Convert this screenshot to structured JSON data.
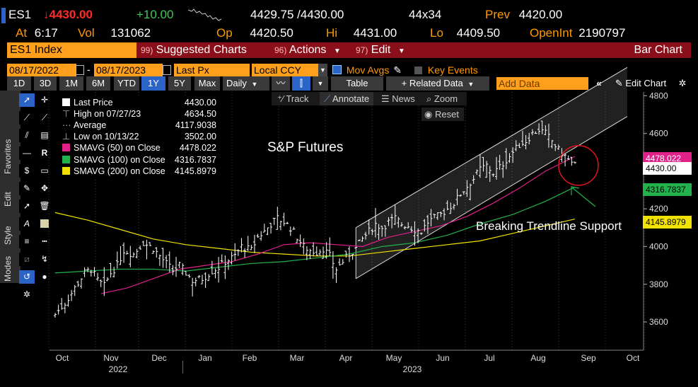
{
  "quote": {
    "ticker": "ES1",
    "arrow": "↓",
    "last": "4430.00",
    "change": "+10.00",
    "bid_ask": "4429.75 /4430.00",
    "size": "44x34",
    "prev_label": "Prev",
    "prev": "4420.00",
    "at_label": "At",
    "time": "6:17",
    "vol_label": "Vol",
    "vol": "131062",
    "op_label": "Op",
    "open": "4420.50",
    "hi_label": "Hi",
    "high": "4431.00",
    "lo_label": "Lo",
    "low": "4409.50",
    "oi_label": "OpenInt",
    "open_interest": "2190797"
  },
  "menu": {
    "security": "ES1 Index",
    "suggested_num": "99)",
    "suggested": "Suggested Charts",
    "actions_num": "96)",
    "actions": "Actions",
    "edit_num": "97)",
    "edit": "Edit",
    "chart_type": "Bar Chart"
  },
  "settings": {
    "start_date": "08/17/2022",
    "end_date": "08/17/2023",
    "field": "Last Px",
    "currency": "Local CCY",
    "mov_avgs": "Mov Avgs",
    "key_events": "Key Events"
  },
  "toolbar": {
    "periods": [
      "1D",
      "3D",
      "1M",
      "6M",
      "YTD",
      "1Y",
      "5Y",
      "Max"
    ],
    "active_period": "1Y",
    "frequency": "Daily",
    "table": "Table",
    "related": "Related Data",
    "add_data_placeholder": "Add Data",
    "edit_chart": "Edit Chart",
    "track": "Track",
    "annotate": "Annotate",
    "news": "News",
    "zoom": "Zoom",
    "reset": "Reset"
  },
  "sidebar": {
    "favorites": "Favorites",
    "edit": "Edit",
    "style": "Style",
    "modes": "Modes"
  },
  "legend": {
    "last_price_label": "Last Price",
    "last_price": "4430.00",
    "high_label": "High on 07/27/23",
    "high": "4634.50",
    "avg_label": "Average",
    "avg": "4117.9038",
    "low_label": "Low on 10/13/22",
    "low": "3502.00",
    "sma50_label": "SMAVG (50)  on Close",
    "sma50": "4478.022",
    "sma100_label": "SMAVG (100)  on Close",
    "sma100": "4316.7837",
    "sma200_label": "SMAVG (200)  on Close",
    "sma200": "4145.8979"
  },
  "annotations": {
    "title": "S&P Futures",
    "breaking": "Breaking Trendline Support"
  },
  "colors": {
    "orange": "#ff9f1c",
    "red": "#8b0f1a",
    "sma50": "#e0218a",
    "sma100": "#22b14c",
    "sma200": "#f2e200"
  },
  "chart_data": {
    "type": "bar",
    "title": "S&P Futures",
    "ylim": [
      3450,
      4820
    ],
    "yticks": [
      3600,
      3800,
      4000,
      4200,
      4400,
      4600,
      4800
    ],
    "xticks": [
      "Oct",
      "Nov",
      "Dec",
      "Jan",
      "Feb",
      "Mar",
      "Apr",
      "May",
      "Jun",
      "Jul",
      "Aug",
      "Sep",
      "Oct"
    ],
    "year_labels": [
      "2022",
      "2023"
    ],
    "last_tag": "4430.00",
    "sma50_tag": "4478.022",
    "sma100_tag": "4316.7837",
    "sma200_tag": "4145.8979",
    "close_path": [
      [
        0,
        3640
      ],
      [
        3,
        3700
      ],
      [
        6,
        3780
      ],
      [
        9,
        3860
      ],
      [
        11,
        3880
      ],
      [
        13,
        3820
      ],
      [
        15,
        3790
      ],
      [
        17,
        3860
      ],
      [
        19,
        3900
      ],
      [
        21,
        3980
      ],
      [
        24,
        3960
      ],
      [
        27,
        4020
      ],
      [
        30,
        3990
      ],
      [
        33,
        3930
      ],
      [
        36,
        3870
      ],
      [
        38,
        3900
      ],
      [
        40,
        3860
      ],
      [
        42,
        3820
      ],
      [
        45,
        3830
      ],
      [
        48,
        3870
      ],
      [
        50,
        3890
      ],
      [
        52,
        3920
      ],
      [
        55,
        3950
      ],
      [
        57,
        4000
      ],
      [
        60,
        3980
      ],
      [
        62,
        4050
      ],
      [
        64,
        4080
      ],
      [
        66,
        4120
      ],
      [
        68,
        4150
      ],
      [
        70,
        4130
      ],
      [
        72,
        4100
      ],
      [
        74,
        4050
      ],
      [
        76,
        4000
      ],
      [
        78,
        3980
      ],
      [
        80,
        3970
      ],
      [
        82,
        3990
      ],
      [
        84,
        3950
      ],
      [
        86,
        3880
      ],
      [
        88,
        3920
      ],
      [
        90,
        3960
      ],
      [
        92,
        3990
      ],
      [
        94,
        4040
      ],
      [
        96,
        4080
      ],
      [
        98,
        4120
      ],
      [
        100,
        4100
      ],
      [
        102,
        4130
      ],
      [
        104,
        4150
      ],
      [
        106,
        4120
      ],
      [
        108,
        4110
      ],
      [
        110,
        4090
      ],
      [
        112,
        4080
      ],
      [
        114,
        4130
      ],
      [
        116,
        4150
      ],
      [
        118,
        4170
      ],
      [
        120,
        4200
      ],
      [
        122,
        4230
      ],
      [
        124,
        4280
      ],
      [
        126,
        4320
      ],
      [
        128,
        4360
      ],
      [
        130,
        4410
      ],
      [
        132,
        4430
      ],
      [
        134,
        4390
      ],
      [
        136,
        4420
      ],
      [
        138,
        4460
      ],
      [
        140,
        4500
      ],
      [
        142,
        4540
      ],
      [
        144,
        4560
      ],
      [
        146,
        4600
      ],
      [
        148,
        4620
      ],
      [
        150,
        4600
      ],
      [
        152,
        4560
      ],
      [
        154,
        4510
      ],
      [
        156,
        4480
      ],
      [
        158,
        4440
      ],
      [
        159,
        4430
      ]
    ],
    "sma50_path": [
      [
        14,
        3750
      ],
      [
        22,
        3780
      ],
      [
        30,
        3830
      ],
      [
        38,
        3880
      ],
      [
        46,
        3900
      ],
      [
        54,
        3920
      ],
      [
        62,
        3960
      ],
      [
        70,
        4010
      ],
      [
        78,
        4020
      ],
      [
        86,
        4010
      ],
      [
        94,
        4000
      ],
      [
        102,
        4050
      ],
      [
        110,
        4080
      ],
      [
        118,
        4110
      ],
      [
        126,
        4160
      ],
      [
        134,
        4230
      ],
      [
        142,
        4310
      ],
      [
        150,
        4400
      ],
      [
        159,
        4478
      ]
    ],
    "sma100_path": [
      [
        0,
        3860
      ],
      [
        10,
        3870
      ],
      [
        20,
        3880
      ],
      [
        30,
        3880
      ],
      [
        40,
        3870
      ],
      [
        50,
        3890
      ],
      [
        60,
        3910
      ],
      [
        70,
        3920
      ],
      [
        80,
        3940
      ],
      [
        90,
        3960
      ],
      [
        100,
        4000
      ],
      [
        110,
        4020
      ],
      [
        120,
        4060
      ],
      [
        130,
        4120
      ],
      [
        140,
        4170
      ],
      [
        150,
        4240
      ],
      [
        159,
        4316
      ]
    ],
    "sma200_path": [
      [
        0,
        4180
      ],
      [
        10,
        4140
      ],
      [
        20,
        4090
      ],
      [
        30,
        4040
      ],
      [
        40,
        4010
      ],
      [
        50,
        3990
      ],
      [
        60,
        3970
      ],
      [
        70,
        3960
      ],
      [
        80,
        3950
      ],
      [
        90,
        3950
      ],
      [
        100,
        3970
      ],
      [
        110,
        3990
      ],
      [
        120,
        4010
      ],
      [
        130,
        4030
      ],
      [
        140,
        4070
      ],
      [
        150,
        4110
      ],
      [
        159,
        4146
      ]
    ],
    "channel": {
      "lower": [
        [
          92,
          3830
        ],
        [
          175,
          4690
        ]
      ],
      "upper": [
        [
          92,
          4100
        ],
        [
          175,
          4950
        ]
      ]
    },
    "x_max": 180
  }
}
